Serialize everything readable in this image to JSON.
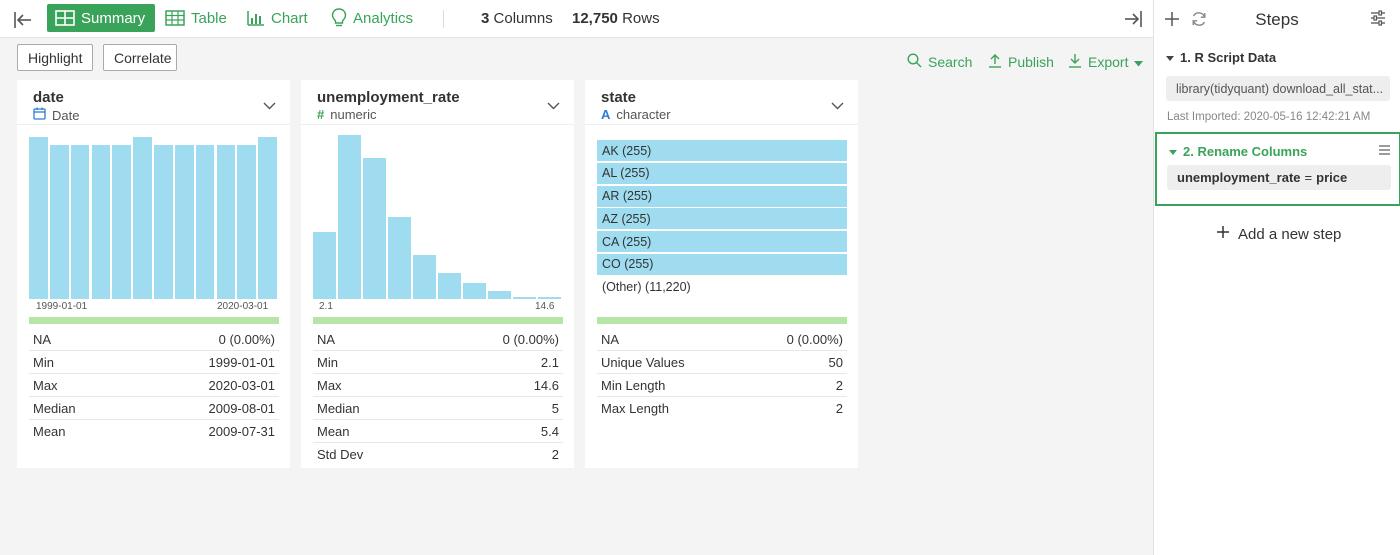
{
  "toolbar": {
    "tabs": [
      {
        "label": "Summary",
        "icon": "summary-grid-icon"
      },
      {
        "label": "Table",
        "icon": "table-icon"
      },
      {
        "label": "Chart",
        "icon": "bar-chart-icon"
      },
      {
        "label": "Analytics",
        "icon": "lightbulb-icon"
      }
    ],
    "columns_count": "3",
    "columns_label": "Columns",
    "rows_count": "12,750",
    "rows_label": "Rows",
    "accent_color": "#3aa35a"
  },
  "actions": {
    "highlight": "Highlight",
    "correlate": "Correlate",
    "search": "Search",
    "publish": "Publish",
    "export": "Export"
  },
  "columns": [
    {
      "name": "date",
      "type": "Date",
      "type_icon": "calendar-icon",
      "histogram": [
        0.99,
        0.94,
        0.94,
        0.94,
        0.94,
        0.99,
        0.94,
        0.94,
        0.94,
        0.94,
        0.94,
        0.99
      ],
      "axis_min": "1999-01-01",
      "axis_max": "2020-03-01",
      "stats": [
        {
          "label": "NA",
          "value": "0 (0.00%)"
        },
        {
          "label": "Min",
          "value": "1999-01-01"
        },
        {
          "label": "Max",
          "value": "2020-03-01"
        },
        {
          "label": "Median",
          "value": "2009-08-01"
        },
        {
          "label": "Mean",
          "value": "2009-07-31"
        }
      ]
    },
    {
      "name": "unemployment_rate",
      "type": "numeric",
      "type_icon": "hash-icon",
      "histogram": [
        0.41,
        1.0,
        0.86,
        0.5,
        0.27,
        0.16,
        0.1,
        0.05,
        0.015,
        0.01
      ],
      "axis_min": "2.1",
      "axis_max": "14.6",
      "stats": [
        {
          "label": "NA",
          "value": "0 (0.00%)"
        },
        {
          "label": "Min",
          "value": "2.1"
        },
        {
          "label": "Max",
          "value": "14.6"
        },
        {
          "label": "Median",
          "value": "5"
        },
        {
          "label": "Mean",
          "value": "5.4"
        },
        {
          "label": "Std Dev",
          "value": "2"
        }
      ]
    },
    {
      "name": "state",
      "type": "character",
      "type_icon": "letter-a-icon",
      "categories": [
        "AK (255)",
        "AL (255)",
        "AR (255)",
        "AZ (255)",
        "CA (255)",
        "CO (255)"
      ],
      "other": "(Other) (11,220)",
      "stats": [
        {
          "label": "NA",
          "value": "0 (0.00%)"
        },
        {
          "label": "Unique Values",
          "value": "50"
        },
        {
          "label": "Min Length",
          "value": "2"
        },
        {
          "label": "Max Length",
          "value": "2"
        }
      ]
    }
  ],
  "steps_panel": {
    "title": "Steps",
    "step1": {
      "title": "1. R Script Data",
      "code": "library(tidyquant) download_all_stat...",
      "meta": "Last Imported: 2020-05-16 12:42:21 AM"
    },
    "step2": {
      "title": "2. Rename Columns",
      "old_name": "unemployment_rate",
      "equals": "=",
      "new_name": "price"
    },
    "add_step": "Add a new step"
  }
}
